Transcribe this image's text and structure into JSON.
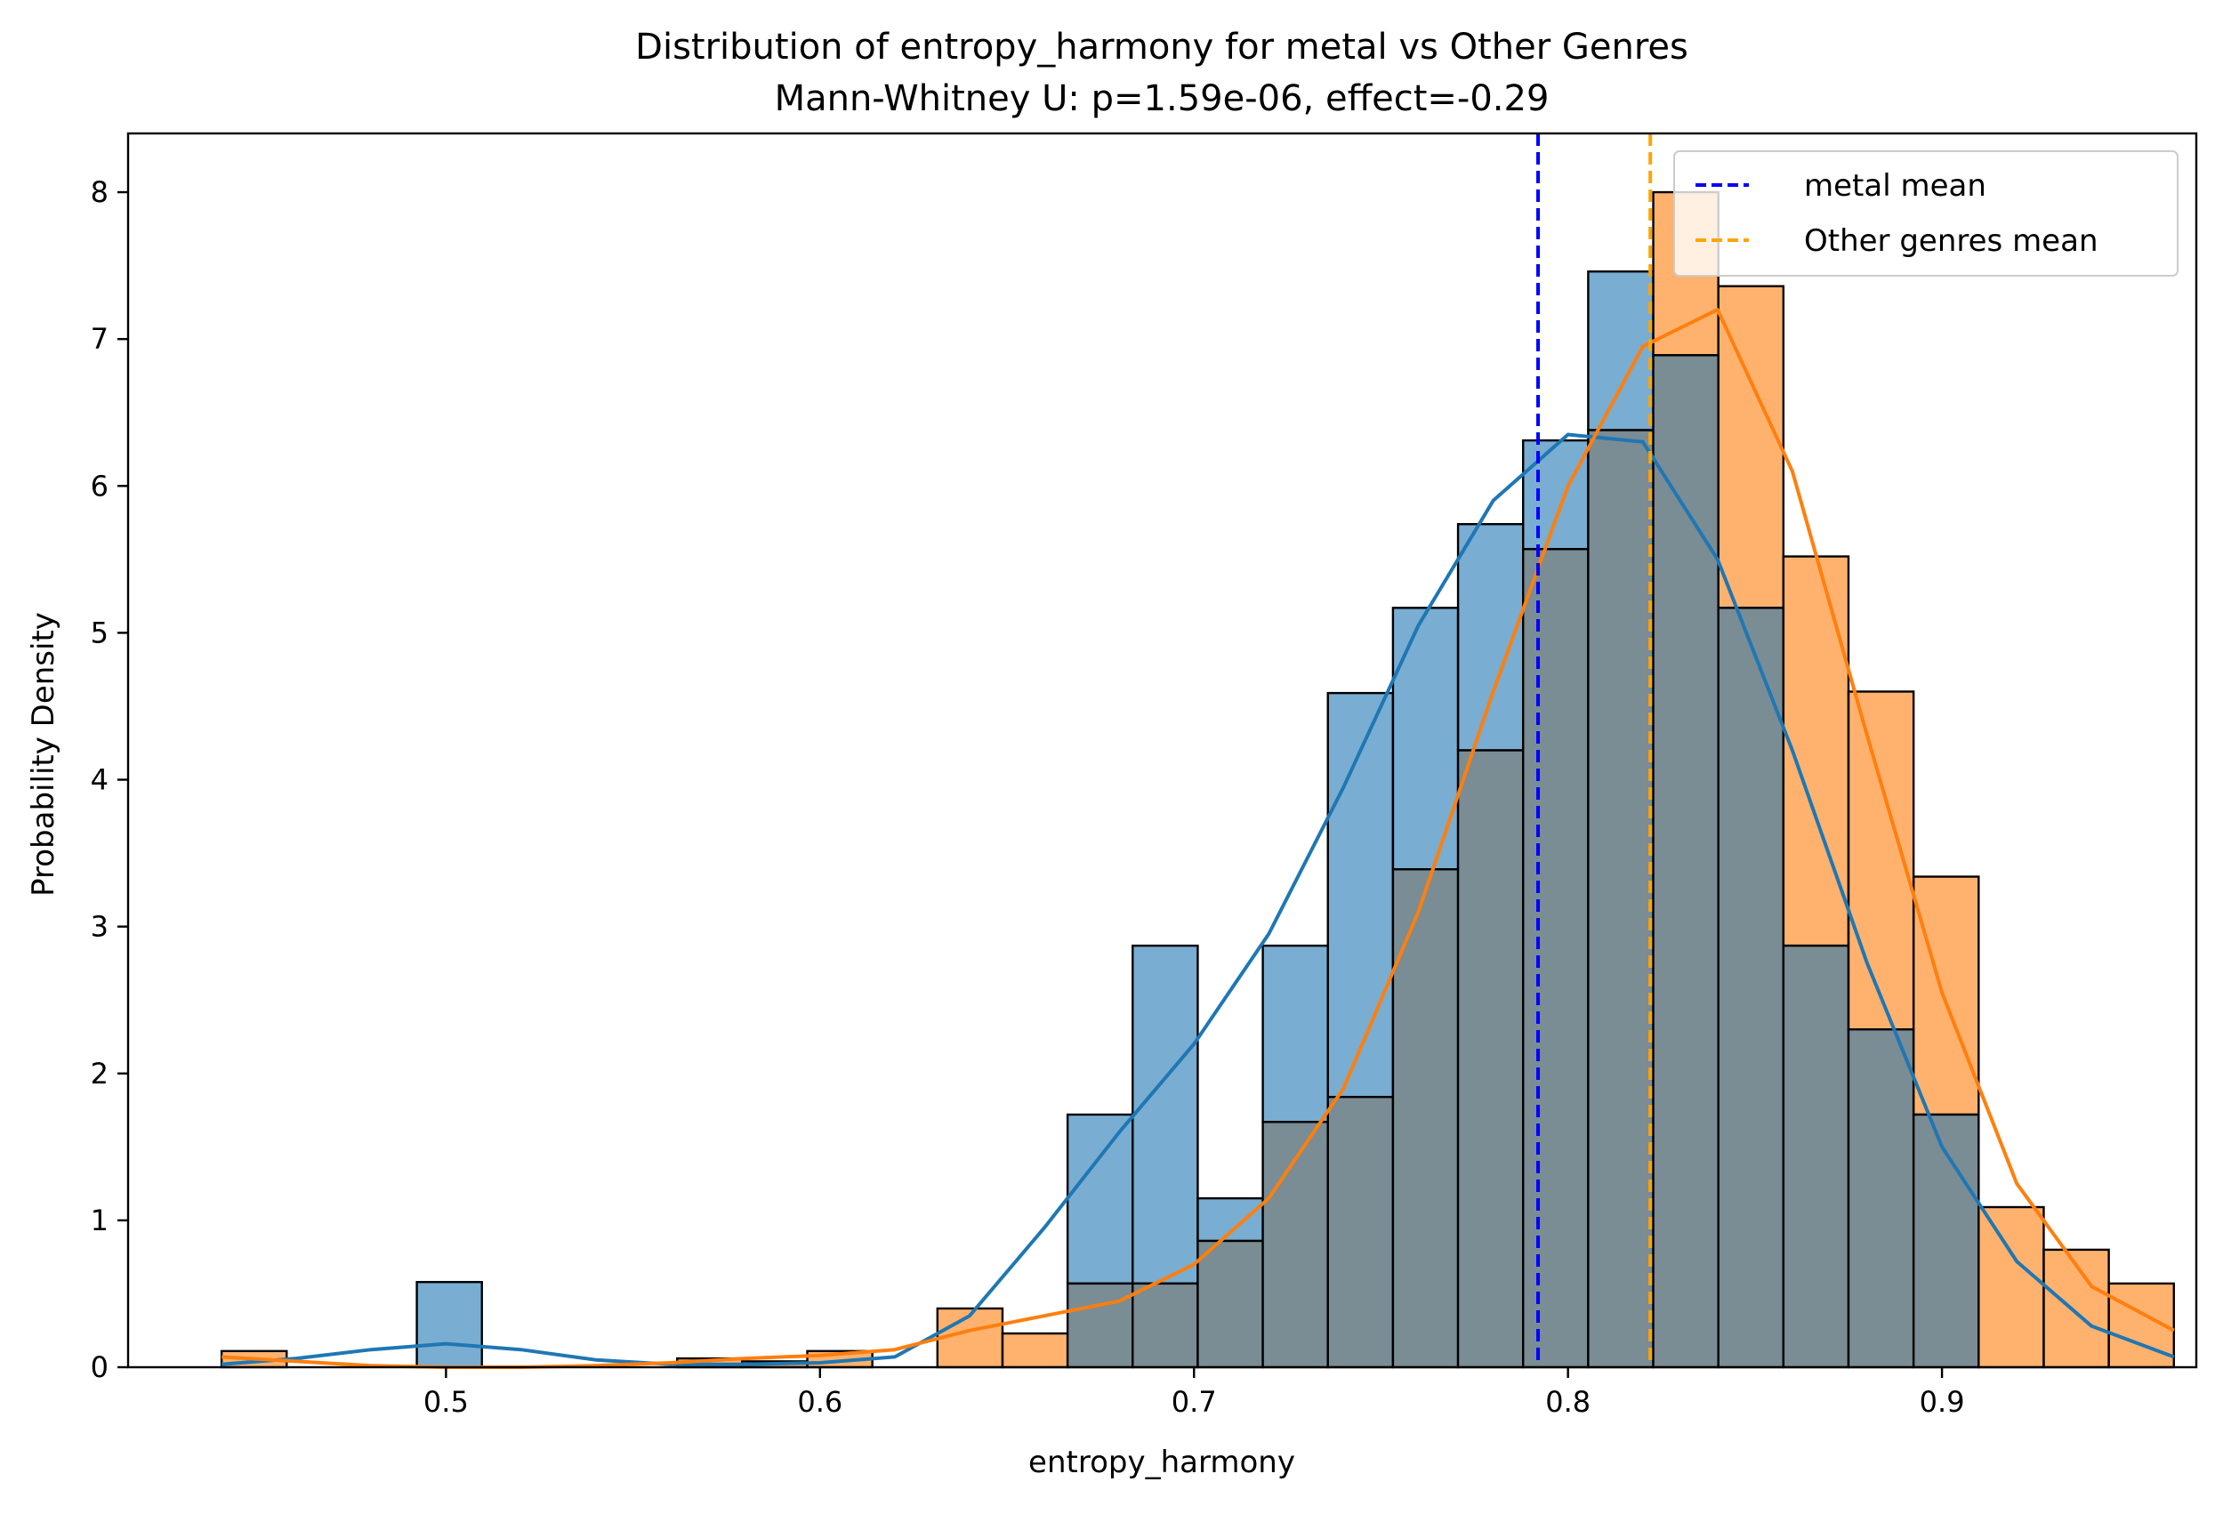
{
  "chart_data": {
    "type": "histogram",
    "title": "Distribution of entropy_harmony for metal vs Other Genres",
    "subtitle": "Mann-Whitney U: p=1.59e-06, effect=-0.29",
    "xlabel": "entropy_harmony",
    "ylabel": "Probability Density",
    "xlim": [
      0.415,
      0.968
    ],
    "ylim": [
      0,
      8.4
    ],
    "x_ticks": [
      0.5,
      0.6,
      0.7,
      0.8,
      0.9
    ],
    "x_tick_labels": [
      "0.5",
      "0.6",
      "0.7",
      "0.8",
      "0.9"
    ],
    "y_ticks": [
      0,
      1,
      2,
      3,
      4,
      5,
      6,
      7,
      8
    ],
    "y_tick_labels": [
      "0",
      "1",
      "2",
      "3",
      "4",
      "5",
      "6",
      "7",
      "8"
    ],
    "grid": false,
    "legend_position": "top-right",
    "bin_edges": [
      0.44,
      0.4574,
      0.4748,
      0.4922,
      0.5096,
      0.527,
      0.5444,
      0.5618,
      0.5792,
      0.5966,
      0.614,
      0.6314,
      0.6488,
      0.6662,
      0.6836,
      0.701,
      0.7184,
      0.7358,
      0.7532,
      0.7706,
      0.788,
      0.8054,
      0.8228,
      0.8402,
      0.8576,
      0.875,
      0.8924,
      0.9098,
      0.9272,
      0.9446,
      0.962
    ],
    "series": [
      {
        "key": "metal",
        "color": "#1f77b4",
        "kde_color": "#1f77b4",
        "density": [
          0.0,
          0.0,
          0.0,
          0.58,
          0.0,
          0.0,
          0.0,
          0.0,
          0.0,
          0.0,
          0.0,
          0.0,
          0.0,
          1.72,
          2.87,
          1.15,
          2.87,
          4.59,
          5.17,
          5.74,
          6.31,
          7.46,
          6.89,
          5.17,
          2.87,
          2.3,
          1.72,
          0.0,
          0.0,
          0.0
        ],
        "kde_x": [
          0.44,
          0.46,
          0.48,
          0.5,
          0.52,
          0.54,
          0.56,
          0.58,
          0.6,
          0.62,
          0.64,
          0.66,
          0.68,
          0.7,
          0.72,
          0.74,
          0.76,
          0.78,
          0.8,
          0.82,
          0.84,
          0.86,
          0.88,
          0.9,
          0.92,
          0.94,
          0.962
        ],
        "kde_y": [
          0.02,
          0.06,
          0.12,
          0.16,
          0.12,
          0.05,
          0.02,
          0.02,
          0.03,
          0.07,
          0.35,
          0.95,
          1.6,
          2.2,
          2.95,
          3.95,
          5.05,
          5.9,
          6.35,
          6.3,
          5.5,
          4.2,
          2.75,
          1.5,
          0.72,
          0.28,
          0.07
        ]
      },
      {
        "key": "other",
        "color": "#ff7f0e",
        "kde_color": "#ff7f0e",
        "density": [
          0.11,
          0.0,
          0.0,
          0.0,
          0.0,
          0.0,
          0.0,
          0.06,
          0.04,
          0.11,
          0.0,
          0.4,
          0.23,
          0.57,
          0.57,
          0.86,
          1.67,
          1.84,
          3.39,
          4.2,
          5.57,
          6.38,
          8.0,
          7.36,
          5.52,
          4.6,
          3.34,
          1.09,
          0.8,
          0.57
        ]
      }
    ],
    "other_kde": {
      "kde_x": [
        0.44,
        0.46,
        0.48,
        0.5,
        0.52,
        0.54,
        0.56,
        0.58,
        0.6,
        0.62,
        0.64,
        0.66,
        0.68,
        0.7,
        0.72,
        0.74,
        0.76,
        0.78,
        0.8,
        0.82,
        0.84,
        0.86,
        0.88,
        0.9,
        0.92,
        0.94,
        0.962
      ],
      "kde_y": [
        0.07,
        0.04,
        0.01,
        0.0,
        0.0,
        0.01,
        0.03,
        0.06,
        0.08,
        0.12,
        0.25,
        0.35,
        0.45,
        0.7,
        1.15,
        1.9,
        3.1,
        4.6,
        6.0,
        6.95,
        7.2,
        6.1,
        4.3,
        2.55,
        1.25,
        0.55,
        0.25
      ]
    },
    "mean_lines": [
      {
        "label": "metal mean",
        "x": 0.792,
        "color": "#0000ff"
      },
      {
        "label": "Other genres mean",
        "x": 0.822,
        "color": "#ffa500"
      }
    ],
    "overlap_color": "#7a8c94"
  }
}
